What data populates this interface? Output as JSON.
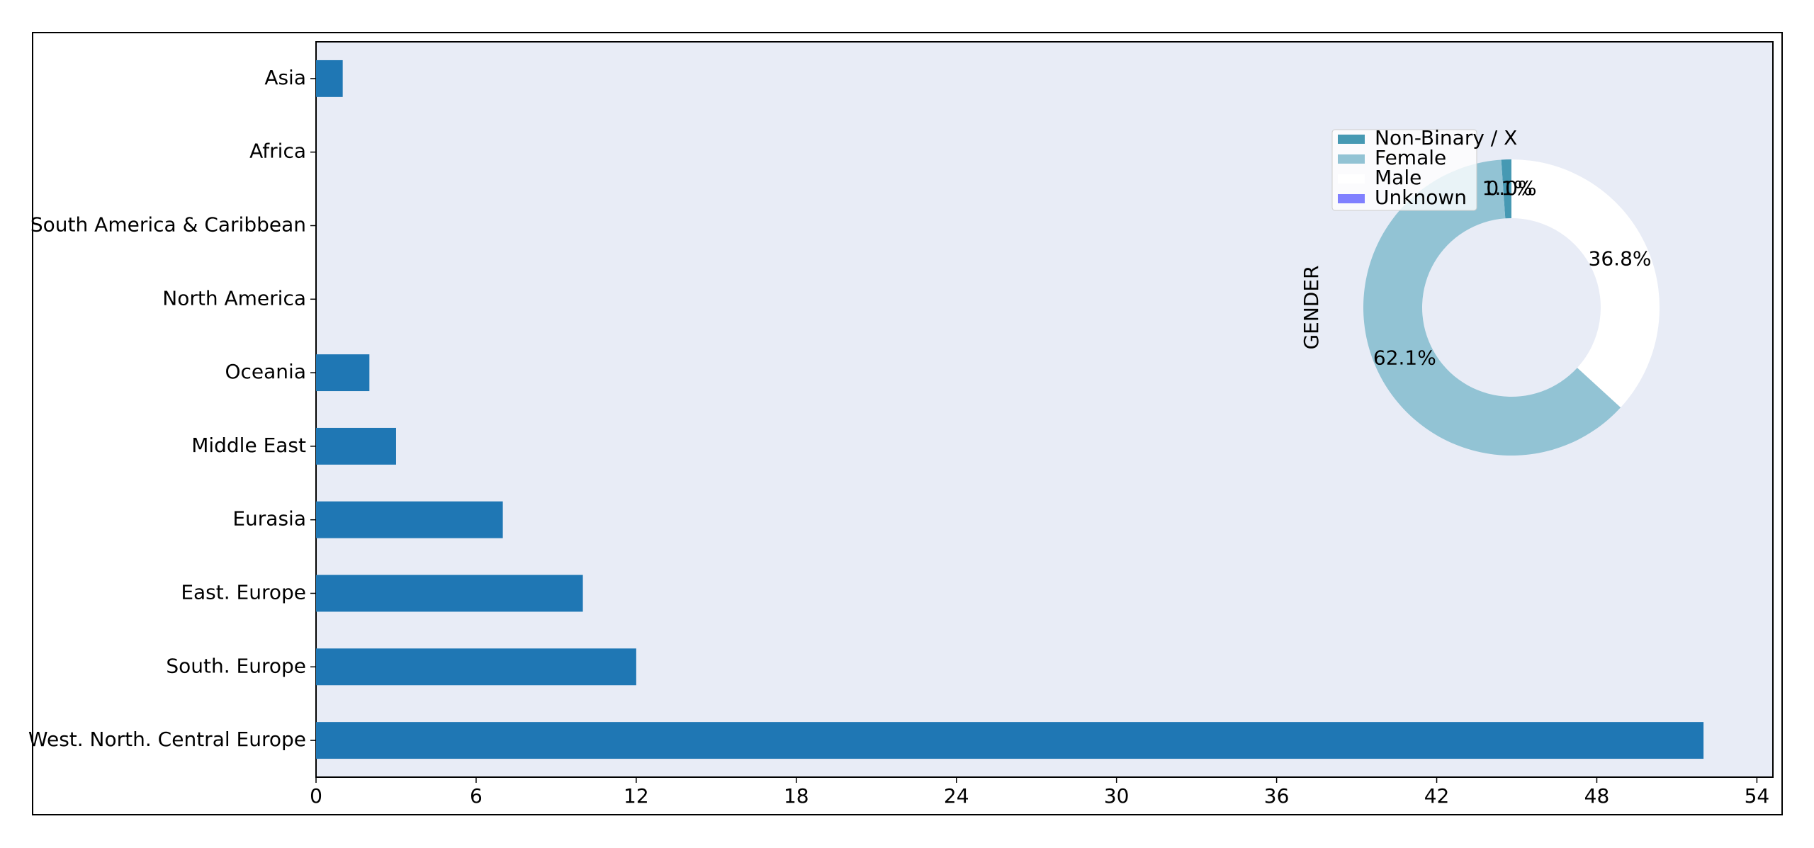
{
  "chart_data": [
    {
      "type": "barh",
      "categories": [
        "Asia",
        "Africa",
        "South America & Caribbean",
        "North America",
        "Oceania",
        "Middle East",
        "Eurasia",
        "East. Europe",
        "South. Europe",
        "West. North. Central Europe"
      ],
      "values": [
        1,
        0,
        0,
        0,
        2,
        3,
        7,
        10,
        12,
        52
      ],
      "color": "#1f77b4",
      "xlim": [
        0,
        54.6
      ],
      "xticks": [
        0,
        6,
        12,
        18,
        24,
        30,
        36,
        42,
        48,
        54
      ]
    },
    {
      "type": "pie",
      "ylabel": "GENDER",
      "categories": [
        "Non-Binary / X",
        "Female",
        "Male",
        "Unknown"
      ],
      "values": [
        1.1,
        62.1,
        36.8,
        0.0
      ],
      "value_labels": [
        "1.1%",
        "62.1%",
        "36.8%",
        "0.0%"
      ],
      "colors": [
        "#4699b3",
        "#92c3d4",
        "#ffffff",
        "#8080ff"
      ]
    }
  ]
}
